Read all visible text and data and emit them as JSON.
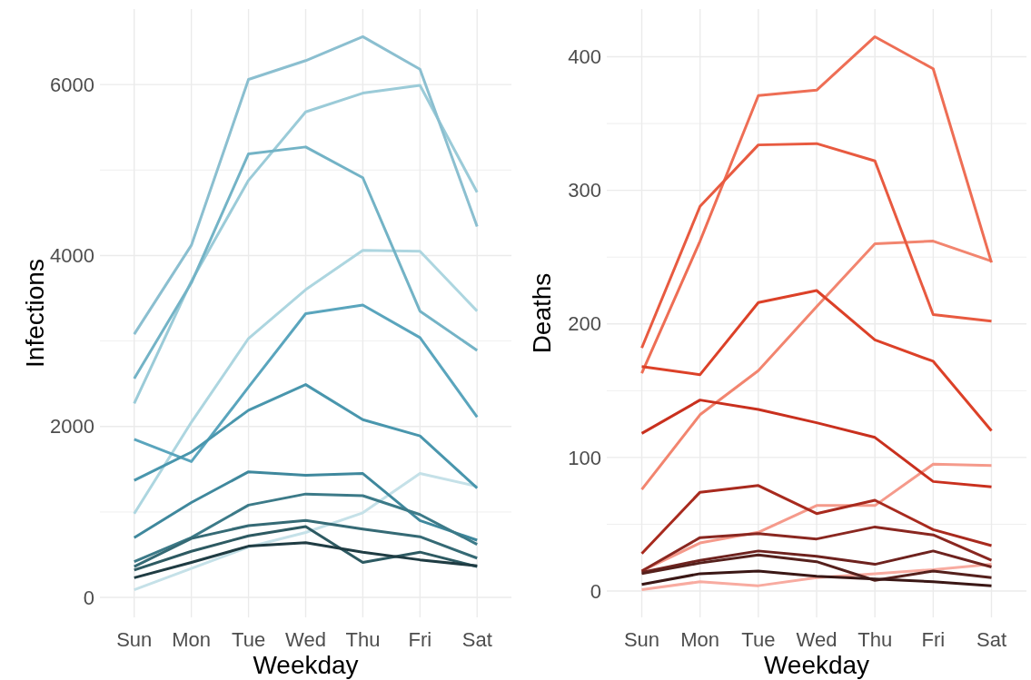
{
  "chart_data": [
    {
      "type": "line",
      "xlabel": "Weekday",
      "ylabel": "Infections",
      "categories": [
        "Sun",
        "Mon",
        "Tue",
        "Wed",
        "Thu",
        "Fri",
        "Sat"
      ],
      "ylim": [
        -233,
        6883
      ],
      "yticks": [
        0,
        {
          "value": 1000,
          "label": null
        },
        2000,
        {
          "value": 3000,
          "label": null
        },
        4000,
        {
          "value": 5000,
          "label": null
        },
        6000
      ],
      "grid": true,
      "marker": "none",
      "line_style": "solid",
      "series": [
        {
          "color": "#c5e1e8",
          "values": [
            90,
            340,
            590,
            760,
            990,
            1450,
            1300
          ]
        },
        {
          "color": "#add6e0",
          "values": [
            980,
            2050,
            3030,
            3600,
            4060,
            4050,
            3350
          ]
        },
        {
          "color": "#9bcbd8",
          "values": [
            2270,
            3700,
            4880,
            5680,
            5900,
            5990,
            4740
          ]
        },
        {
          "color": "#8bbfd0",
          "values": [
            3080,
            4120,
            6060,
            6280,
            6560,
            6180,
            4340
          ]
        },
        {
          "color": "#73b3c6",
          "values": [
            2560,
            3680,
            5190,
            5270,
            4910,
            3350,
            2890
          ]
        },
        {
          "color": "#5aa5bd",
          "values": [
            1850,
            1590,
            2460,
            3320,
            3420,
            3040,
            2110
          ]
        },
        {
          "color": "#4996ad",
          "values": [
            1370,
            1700,
            2190,
            2490,
            2080,
            1890,
            1280
          ]
        },
        {
          "color": "#3f889d",
          "values": [
            700,
            1110,
            1470,
            1430,
            1450,
            900,
            670
          ]
        },
        {
          "color": "#3c7a88",
          "values": [
            420,
            700,
            1080,
            1210,
            1190,
            970,
            620
          ]
        },
        {
          "color": "#356a75",
          "values": [
            360,
            690,
            840,
            900,
            800,
            710,
            460
          ]
        },
        {
          "color": "#2d5a62",
          "values": [
            320,
            540,
            720,
            830,
            410,
            530,
            360
          ]
        },
        {
          "color": "#1f3c43",
          "values": [
            230,
            410,
            600,
            640,
            530,
            440,
            370
          ]
        }
      ]
    },
    {
      "type": "line",
      "xlabel": "Weekday",
      "ylabel": "Deaths",
      "categories": [
        "Sun",
        "Mon",
        "Tue",
        "Wed",
        "Thu",
        "Fri",
        "Sat"
      ],
      "ylim": [
        -19.7,
        435.7
      ],
      "yticks": [
        0,
        {
          "value": 50,
          "label": null
        },
        100,
        {
          "value": 150,
          "label": null
        },
        200,
        {
          "value": 250,
          "label": null
        },
        300,
        {
          "value": 350,
          "label": null
        },
        400
      ],
      "grid": true,
      "marker": "none",
      "line_style": "solid",
      "series": [
        {
          "color": "#f8aba0",
          "values": [
            1,
            7,
            4,
            10,
            13,
            16,
            20
          ]
        },
        {
          "color": "#f59a8b",
          "values": [
            15,
            36,
            44,
            64,
            64,
            95,
            94
          ]
        },
        {
          "color": "#f2856f",
          "values": [
            76,
            132,
            165,
            213,
            260,
            262,
            247
          ]
        },
        {
          "color": "#ee6e55",
          "values": [
            163,
            262,
            371,
            375,
            415,
            391,
            246
          ]
        },
        {
          "color": "#e85a40",
          "values": [
            182,
            288,
            334,
            335,
            322,
            207,
            202
          ]
        },
        {
          "color": "#dc4128",
          "values": [
            168,
            162,
            216,
            225,
            188,
            172,
            120
          ]
        },
        {
          "color": "#c9301e",
          "values": [
            118,
            143,
            136,
            126,
            115,
            82,
            78
          ]
        },
        {
          "color": "#a82a1e",
          "values": [
            28,
            74,
            79,
            58,
            68,
            46,
            34
          ]
        },
        {
          "color": "#8a2720",
          "values": [
            15,
            40,
            43,
            39,
            48,
            42,
            23
          ]
        },
        {
          "color": "#6e221e",
          "values": [
            14,
            23,
            30,
            26,
            20,
            30,
            18
          ]
        },
        {
          "color": "#55201c",
          "values": [
            13,
            21,
            27,
            22,
            8,
            15,
            10
          ]
        },
        {
          "color": "#3a1715",
          "values": [
            5,
            13,
            15,
            11,
            9,
            7,
            4
          ]
        }
      ]
    }
  ]
}
